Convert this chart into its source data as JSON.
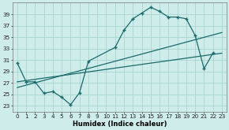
{
  "background_color": "#ceecea",
  "grid_color": "#aad4d0",
  "line_color": "#1a6b6b",
  "xlabel": "Humidex (Indice chaleur)",
  "x_ticks": [
    0,
    1,
    2,
    3,
    4,
    5,
    6,
    7,
    8,
    9,
    10,
    11,
    12,
    13,
    14,
    15,
    16,
    17,
    18,
    19,
    20,
    21,
    22,
    23
  ],
  "y_ticks": [
    23,
    25,
    27,
    29,
    31,
    33,
    35,
    37,
    39
  ],
  "ylim": [
    22.0,
    41.0
  ],
  "xlim": [
    -0.5,
    23.5
  ],
  "curve_x": [
    0,
    1,
    2,
    3,
    4,
    5,
    6,
    7,
    8,
    11,
    12,
    13,
    14,
    15,
    16,
    17,
    18,
    19,
    20,
    21,
    22
  ],
  "curve_y": [
    30.5,
    27.2,
    27.2,
    25.2,
    25.5,
    24.5,
    23.2,
    25.3,
    30.8,
    33.2,
    36.2,
    38.2,
    39.2,
    40.2,
    39.5,
    38.5,
    38.5,
    38.2,
    35.3,
    29.5,
    32.2
  ],
  "trend1_x": [
    0,
    23
  ],
  "trend1_y": [
    27.2,
    32.2
  ],
  "trend2_x": [
    0,
    23
  ],
  "trend2_y": [
    26.2,
    35.8
  ],
  "xlabel_fontsize": 6.0,
  "tick_fontsize": 5.2
}
